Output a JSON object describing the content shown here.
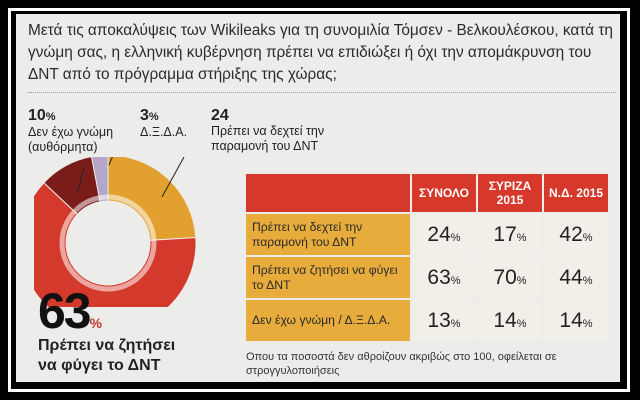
{
  "question": "Μετά τις αποκαλύψεις των Wikileaks για τη συνομιλία Τόμσεν - Βελκουλέσκου, κατά τη γνώμη σας, η ελληνική κυβέρνηση πρέπει να επιδιώξει ή όχι την απομάκρυνση του ΔΝΤ από το πρόγραμμα στήριξης της χώρας;",
  "pie_labels": {
    "no_opinion": {
      "value": "10",
      "unit": "%",
      "label_line1": "Δεν έχω γνώμη",
      "label_line2": "(αυθόρμητα)"
    },
    "dxda": {
      "value": "3",
      "unit": "%",
      "label": "Δ.Ξ.Δ.Α."
    },
    "accept": {
      "value": "24",
      "label_line1": "Πρέπει να δεχτεί την",
      "label_line2": "παραμονή του ΔΝΤ"
    },
    "leave": {
      "value": "63",
      "unit": "%",
      "label_line1": "Πρέπει να ζητήσει",
      "label_line2": "να φύγει το ΔΝΤ"
    }
  },
  "table_note": "Οπου τα ποσοστά δεν αθροίζουν ακριβώς στο 100, οφείλεται σε στρογγυλοποιήσεις",
  "chart_data": [
    {
      "type": "pie",
      "unit": "%",
      "slices": [
        {
          "label": "Πρέπει να δεχτεί την παραμονή του ΔΝΤ",
          "value": 24,
          "color": "#e2a12f"
        },
        {
          "label": "Πρέπει να ζητήσει να φύγει το ΔΝΤ",
          "value": 63,
          "color": "#d43a2c"
        },
        {
          "label": "Δεν έχω γνώμη (αυθόρμητα)",
          "value": 10,
          "color": "#7a1d1a"
        },
        {
          "label": "Δ.Ξ.Δ.Α.",
          "value": 3,
          "color": "#b3a6c8"
        }
      ]
    },
    {
      "type": "table",
      "unit": "%",
      "columns": [
        "ΣΥΝΟΛΟ",
        "ΣΥΡΙΖΑ 2015",
        "Ν.Δ. 2015"
      ],
      "rows": [
        {
          "label": "Πρέπει να δεχτεί την παραμονή του ΔΝΤ",
          "values": [
            24,
            17,
            42
          ]
        },
        {
          "label": "Πρέπει να ζητήσει να φύγει το ΔΝΤ",
          "values": [
            63,
            70,
            44
          ]
        },
        {
          "label": "Δεν έχω γνώμη / Δ.Ξ.Δ.Α.",
          "values": [
            13,
            14,
            14
          ]
        }
      ]
    }
  ]
}
